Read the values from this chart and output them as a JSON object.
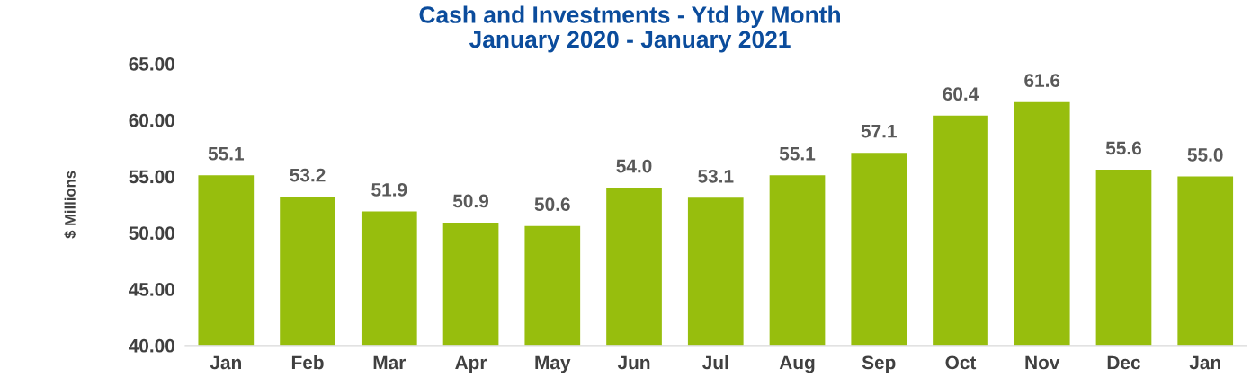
{
  "chart_data": {
    "type": "bar",
    "title": "Cash and Investments - Ytd by Month\nJanuary 2020 - January 2021",
    "ylabel": "$ Millions",
    "categories": [
      "Jan",
      "Feb",
      "Mar",
      "Apr",
      "May",
      "Jun",
      "Jul",
      "Aug",
      "Sep",
      "Oct",
      "Nov",
      "Dec",
      "Jan"
    ],
    "values": [
      55.1,
      53.2,
      51.9,
      50.9,
      50.6,
      54.0,
      53.1,
      55.1,
      57.1,
      60.4,
      61.6,
      55.6,
      55.0
    ],
    "color": "#97be0d",
    "ylim": [
      40,
      65
    ],
    "yticks": [
      {
        "value": 40,
        "label": "40.00"
      },
      {
        "value": 45,
        "label": "45.00"
      },
      {
        "value": 50,
        "label": "50.00"
      },
      {
        "value": 55,
        "label": "55.00"
      },
      {
        "value": 60,
        "label": "60.00"
      },
      {
        "value": 65,
        "label": "65.00"
      }
    ],
    "value_labels": [
      "55.1",
      "53.2",
      "51.9",
      "50.9",
      "50.6",
      "54.0",
      "53.1",
      "55.1",
      "57.1",
      "60.4",
      "61.6",
      "55.6",
      "55.0"
    ],
    "grid": false,
    "legend": false
  }
}
